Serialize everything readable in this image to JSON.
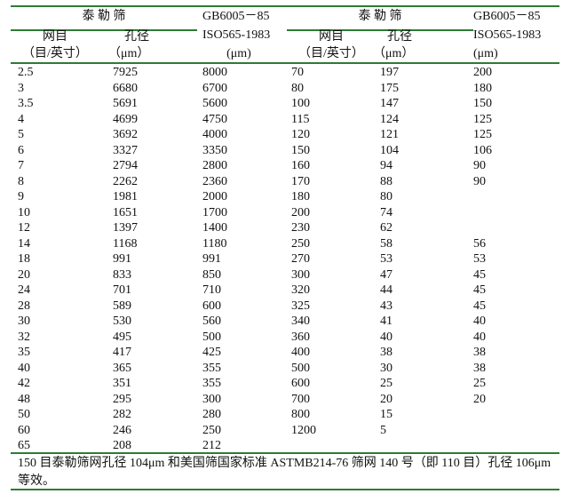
{
  "header": {
    "tyler_sieve": "泰 勒 筛",
    "gb_standard": "GB6005－85",
    "iso_standard": "ISO565-1983",
    "iso_unit": "(μm)",
    "mesh_label": "网目",
    "mesh_unit": "（目/英寸）",
    "aperture_label": "孔径",
    "aperture_unit": "（μm）"
  },
  "colors": {
    "rule": "#2f7a35"
  },
  "rows": [
    [
      "2.5",
      "7925",
      "8000",
      "70",
      "197",
      "200"
    ],
    [
      "3",
      "6680",
      "6700",
      "80",
      "175",
      "180"
    ],
    [
      "3.5",
      "5691",
      "5600",
      "100",
      "147",
      "150"
    ],
    [
      "4",
      "4699",
      "4750",
      "115",
      "124",
      "125"
    ],
    [
      "5",
      "3692",
      "4000",
      "120",
      "121",
      "125"
    ],
    [
      "6",
      "3327",
      "3350",
      "150",
      "104",
      "106"
    ],
    [
      "7",
      "2794",
      "2800",
      "160",
      "94",
      "90"
    ],
    [
      "8",
      "2262",
      "2360",
      "170",
      "88",
      "90"
    ],
    [
      "9",
      "1981",
      "2000",
      "180",
      "80",
      ""
    ],
    [
      "10",
      "1651",
      "1700",
      "200",
      "74",
      ""
    ],
    [
      "12",
      "1397",
      "1400",
      "230",
      "62",
      ""
    ],
    [
      "14",
      "1168",
      "1180",
      "250",
      "58",
      "56"
    ],
    [
      "18",
      "991",
      "991",
      "270",
      "53",
      "53"
    ],
    [
      "20",
      "833",
      "850",
      "300",
      "47",
      "45"
    ],
    [
      "24",
      "701",
      "710",
      "320",
      "44",
      "45"
    ],
    [
      "28",
      "589",
      "600",
      "325",
      "43",
      "45"
    ],
    [
      "30",
      "530",
      "560",
      "340",
      "41",
      "40"
    ],
    [
      "32",
      "495",
      "500",
      "360",
      "40",
      "40"
    ],
    [
      "35",
      "417",
      "425",
      "400",
      "38",
      "38"
    ],
    [
      "40",
      "365",
      "355",
      "500",
      "30",
      "38"
    ],
    [
      "42",
      "351",
      "355",
      "600",
      "25",
      "25"
    ],
    [
      "48",
      "295",
      "300",
      "700",
      "20",
      "20"
    ],
    [
      "50",
      "282",
      "280",
      "800",
      "15",
      ""
    ],
    [
      "60",
      "246",
      "250",
      "1200",
      "5",
      ""
    ],
    [
      "65",
      "208",
      "212",
      "",
      "",
      ""
    ]
  ],
  "footnote": "150 目泰勒筛网孔径 104μm 和美国筛国家标准 ASTMB214-76 筛网 140 号（即 110 目）孔径 106μm 等效。"
}
